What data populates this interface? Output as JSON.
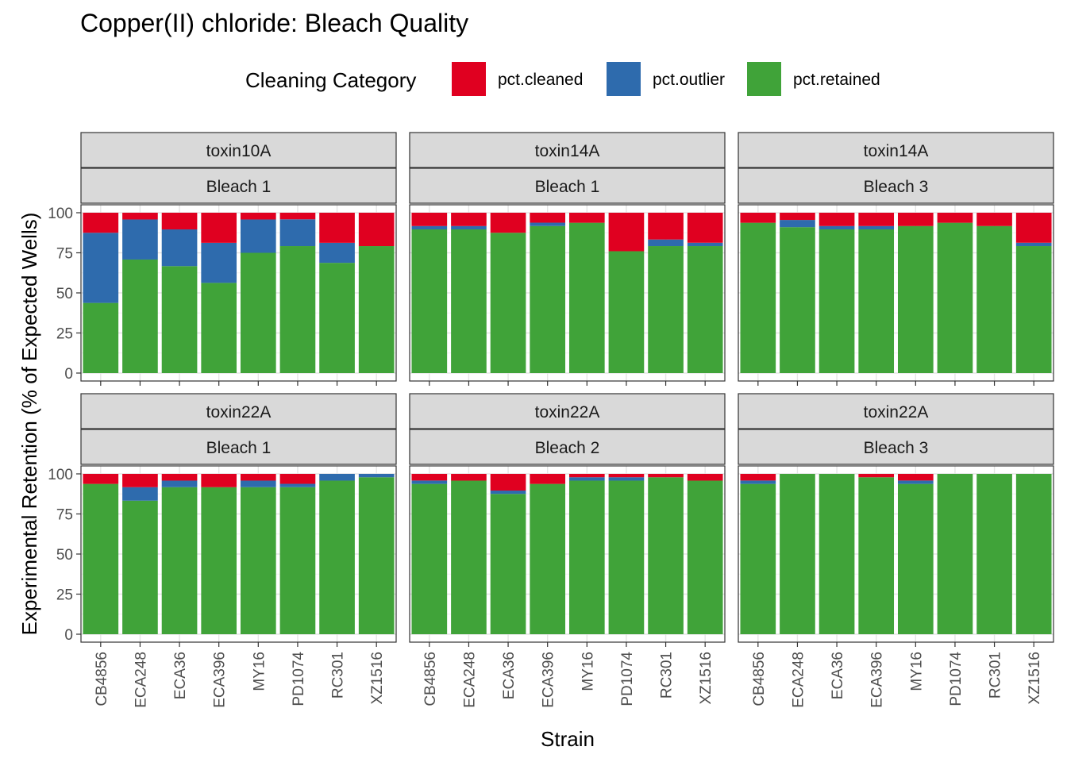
{
  "chart_data": {
    "type": "bar",
    "stacked": true,
    "title": "Copper(II) chloride: Bleach Quality",
    "xlabel": "Strain",
    "ylabel": "Experimental Retention (% of Expected Wells)",
    "legend": {
      "title": "Cleaning Category",
      "position": "top",
      "entries": [
        {
          "key": "cleaned",
          "label": "pct.cleaned",
          "color": "#E00020"
        },
        {
          "key": "outlier",
          "label": "pct.outlier",
          "color": "#2E6BAD"
        },
        {
          "key": "retained",
          "label": "pct.retained",
          "color": "#40A339"
        }
      ]
    },
    "ylim": [
      0,
      100
    ],
    "yticks": [
      "0",
      "25",
      "50",
      "75",
      "100"
    ],
    "ytick_values": [
      0,
      25,
      50,
      75,
      100
    ],
    "categories": [
      "CB4856",
      "ECA248",
      "ECA36",
      "ECA396",
      "MY16",
      "PD1074",
      "RC301",
      "XZ1516"
    ],
    "grid": true,
    "panels": [
      {
        "strip_top": "toxin10A",
        "strip_bottom": "Bleach 1",
        "retained": [
          43.75,
          70.8,
          66.7,
          56.25,
          75.0,
          79.2,
          68.75,
          79.2
        ],
        "outlier": [
          43.75,
          25.0,
          22.9,
          25.0,
          20.8,
          16.7,
          12.5,
          0
        ],
        "cleaned": [
          12.5,
          4.2,
          10.4,
          18.75,
          4.2,
          4.1,
          18.75,
          20.8
        ]
      },
      {
        "strip_top": "toxin14A",
        "strip_bottom": "Bleach 1",
        "retained": [
          89.6,
          89.6,
          87.5,
          91.7,
          93.75,
          76.0,
          79.2,
          79.2
        ],
        "outlier": [
          2.1,
          2.1,
          0,
          2.1,
          0,
          0,
          4.1,
          2.1
        ],
        "cleaned": [
          8.3,
          8.3,
          12.5,
          6.2,
          6.25,
          24.0,
          16.7,
          18.7
        ]
      },
      {
        "strip_top": "toxin14A",
        "strip_bottom": "Bleach 3",
        "retained": [
          93.75,
          91.0,
          89.6,
          89.6,
          91.7,
          93.75,
          91.7,
          79.2
        ],
        "outlier": [
          0,
          4.5,
          2.1,
          2.1,
          0,
          0,
          0,
          2.1
        ],
        "cleaned": [
          6.25,
          4.5,
          8.3,
          8.3,
          8.3,
          6.25,
          8.3,
          18.7
        ]
      },
      {
        "strip_top": "toxin22A",
        "strip_bottom": "Bleach 1",
        "retained": [
          93.75,
          83.3,
          91.7,
          91.7,
          91.7,
          91.7,
          95.8,
          97.9
        ],
        "outlier": [
          0,
          8.4,
          4.1,
          0,
          4.1,
          2.1,
          4.2,
          2.1
        ],
        "cleaned": [
          6.25,
          8.3,
          4.2,
          8.3,
          4.2,
          6.2,
          0,
          0
        ]
      },
      {
        "strip_top": "toxin22A",
        "strip_bottom": "Bleach 2",
        "retained": [
          93.75,
          95.8,
          87.5,
          93.75,
          95.8,
          95.8,
          97.9,
          95.8
        ],
        "outlier": [
          2.1,
          0,
          2.1,
          0,
          2.1,
          2.1,
          0,
          0
        ],
        "cleaned": [
          4.15,
          4.2,
          10.4,
          6.25,
          2.1,
          2.1,
          2.1,
          4.2
        ]
      },
      {
        "strip_top": "toxin22A",
        "strip_bottom": "Bleach 3",
        "retained": [
          93.75,
          100,
          100,
          97.9,
          93.75,
          100,
          100,
          100
        ],
        "outlier": [
          2.1,
          0,
          0,
          0,
          2.1,
          0,
          0,
          0
        ],
        "cleaned": [
          4.15,
          0,
          0,
          2.1,
          4.15,
          0,
          0,
          0
        ]
      }
    ]
  }
}
